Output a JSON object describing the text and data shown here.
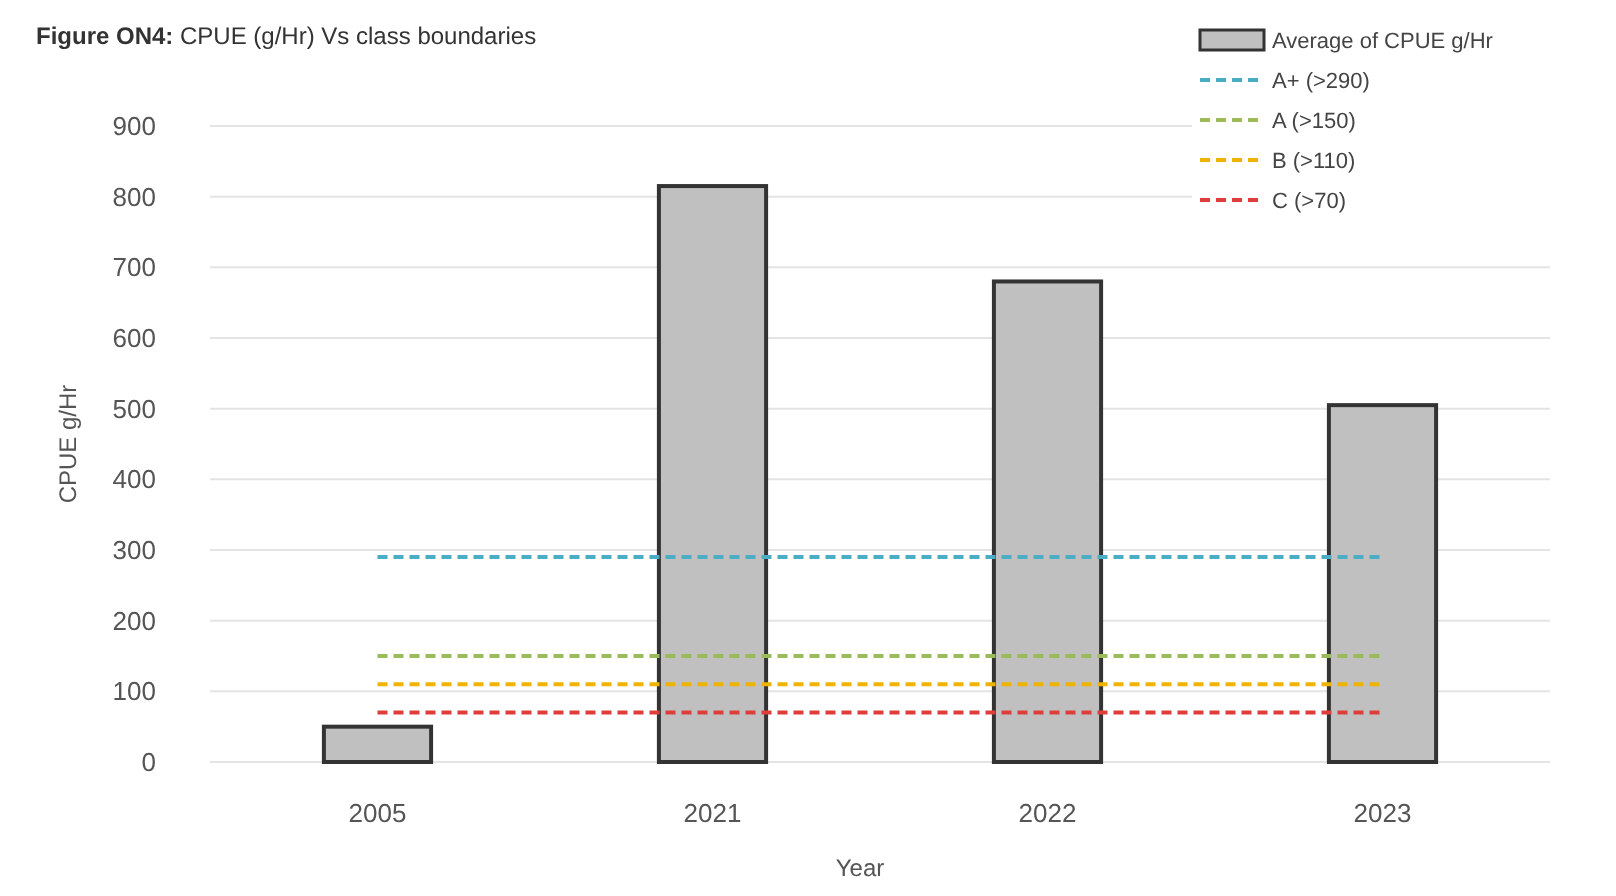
{
  "chart_data": {
    "type": "bar",
    "title": "Figure ON4: CPUE (g/Hr) Vs class boundaries",
    "xlabel": "Year",
    "ylabel": "CPUE g/Hr",
    "categories": [
      "2005",
      "2021",
      "2022",
      "2023"
    ],
    "series": [
      {
        "name": "Average of CPUE g/Hr",
        "color": "#c0c0c0",
        "values": [
          50,
          815,
          680,
          505
        ]
      },
      {
        "type": "line",
        "name": "A+ (>290)",
        "color": "#4bacc6",
        "line_style": "dashed",
        "values": [
          290,
          290,
          290,
          290
        ]
      },
      {
        "type": "line",
        "name": "A (>150)",
        "color": "#9bbb59",
        "line_style": "dashed",
        "values": [
          150,
          150,
          150,
          150
        ]
      },
      {
        "type": "line",
        "name": "B (>110)",
        "color": "#f0b400",
        "line_style": "dashed",
        "values": [
          110,
          110,
          110,
          110
        ]
      },
      {
        "type": "line",
        "name": "C (>70)",
        "color": "#e03c3c",
        "line_style": "dashed",
        "values": [
          70,
          70,
          70,
          70
        ]
      }
    ],
    "ylim": [
      0,
      900
    ],
    "yticks": [
      0,
      100,
      200,
      300,
      400,
      500,
      600,
      700,
      800,
      900
    ],
    "grid": "y",
    "legend": "top right",
    "marker": "none"
  }
}
